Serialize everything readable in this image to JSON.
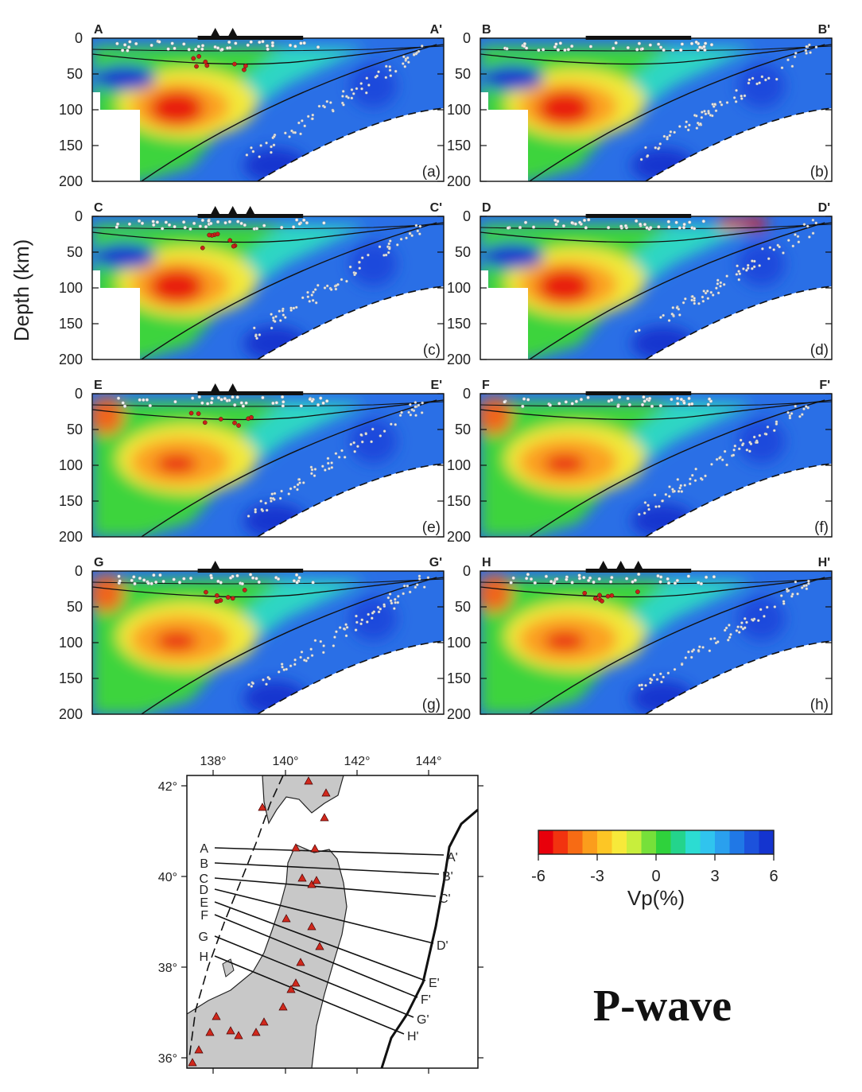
{
  "figure": {
    "title": "P-wave",
    "y_axis_label": "Depth (km)",
    "depth_ticks": [
      "0",
      "50",
      "100",
      "150",
      "200"
    ],
    "panels": [
      {
        "letter": "(a)",
        "left": "A",
        "right": "A'",
        "volcanoes": 2
      },
      {
        "letter": "(b)",
        "left": "B",
        "right": "B'",
        "volcanoes": 0
      },
      {
        "letter": "(c)",
        "left": "C",
        "right": "C'",
        "volcanoes": 3
      },
      {
        "letter": "(d)",
        "left": "D",
        "right": "D'",
        "volcanoes": 0
      },
      {
        "letter": "(e)",
        "left": "E",
        "right": "E'",
        "volcanoes": 2
      },
      {
        "letter": "(f)",
        "left": "F",
        "right": "F'",
        "volcanoes": 0
      },
      {
        "letter": "(g)",
        "left": "G",
        "right": "G'",
        "volcanoes": 1
      },
      {
        "letter": "(h)",
        "left": "H",
        "right": "H'",
        "volcanoes": 3
      }
    ]
  },
  "colorbar": {
    "label": "Vp(%)",
    "ticks": [
      "-6",
      "-3",
      "0",
      "3",
      "6"
    ],
    "colors": [
      "#e8000b",
      "#f2330f",
      "#f76b14",
      "#fb9d1c",
      "#fdc625",
      "#f7e93a",
      "#c8ee3c",
      "#76e03a",
      "#2fd23c",
      "#24d48c",
      "#2cdcd2",
      "#30c4ee",
      "#2aa0ee",
      "#2078e6",
      "#1c52dc",
      "#1434cf"
    ]
  },
  "map": {
    "lon_labels": [
      "138°",
      "140°",
      "142°",
      "144°"
    ],
    "lat_labels": [
      "42°",
      "40°",
      "38°",
      "36°"
    ],
    "profiles": [
      {
        "start": "A",
        "end": "A'"
      },
      {
        "start": "B",
        "end": "B'"
      },
      {
        "start": "C",
        "end": "C'"
      },
      {
        "start": "D",
        "end": "D'"
      },
      {
        "start": "E",
        "end": "E'"
      },
      {
        "start": "F",
        "end": "F'"
      },
      {
        "start": "G",
        "end": "G'"
      },
      {
        "start": "H",
        "end": "H'"
      }
    ]
  },
  "style": {
    "background_blue": "#2a6fe6",
    "slow_red": "#e81c10",
    "land_gray": "#c8c8c8",
    "volcano_red": "#d0281c"
  }
}
